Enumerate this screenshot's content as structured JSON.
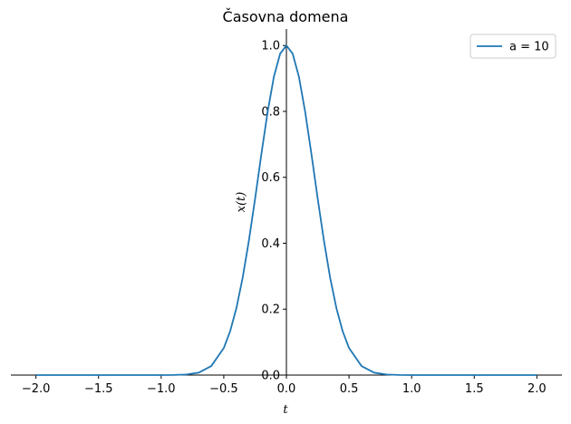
{
  "chart_data": {
    "type": "line",
    "title": "Časovna domena",
    "xlabel": "t",
    "ylabel": "x(t)",
    "xlim": [
      -2.2,
      2.2
    ],
    "ylim": [
      0.0,
      1.05
    ],
    "xticks": [
      -2.0,
      -1.5,
      -1.0,
      -0.5,
      0.0,
      0.5,
      1.0,
      1.5,
      2.0
    ],
    "xtick_labels": [
      "−2.0",
      "−1.5",
      "−1.0",
      "−0.5",
      "0.0",
      "0.5",
      "1.0",
      "1.5",
      "2.0"
    ],
    "yticks": [
      0.0,
      0.2,
      0.4,
      0.6,
      0.8,
      1.0
    ],
    "ytick_labels": [
      "0.0",
      "0.2",
      "0.4",
      "0.6",
      "0.8",
      "1.0"
    ],
    "grid": false,
    "legend_position": "top-right",
    "series": [
      {
        "name": "a = 10",
        "color": "#1f77b4",
        "x": [
          -2.0,
          -1.0,
          -0.9,
          -0.8,
          -0.7,
          -0.6,
          -0.5,
          -0.45,
          -0.4,
          -0.35,
          -0.3,
          -0.25,
          -0.2,
          -0.15,
          -0.1,
          -0.05,
          0.0,
          0.05,
          0.1,
          0.15,
          0.2,
          0.25,
          0.3,
          0.35,
          0.4,
          0.45,
          0.5,
          0.6,
          0.7,
          0.8,
          0.9,
          1.0,
          2.0
        ],
        "y": [
          0.0,
          0.0,
          0.0003,
          0.0017,
          0.0074,
          0.0273,
          0.082,
          0.132,
          0.202,
          0.294,
          0.407,
          0.535,
          0.67,
          0.798,
          0.905,
          0.975,
          1.0,
          0.975,
          0.905,
          0.798,
          0.67,
          0.535,
          0.407,
          0.294,
          0.202,
          0.132,
          0.082,
          0.0273,
          0.0074,
          0.0017,
          0.0003,
          0.0,
          0.0
        ]
      }
    ]
  }
}
